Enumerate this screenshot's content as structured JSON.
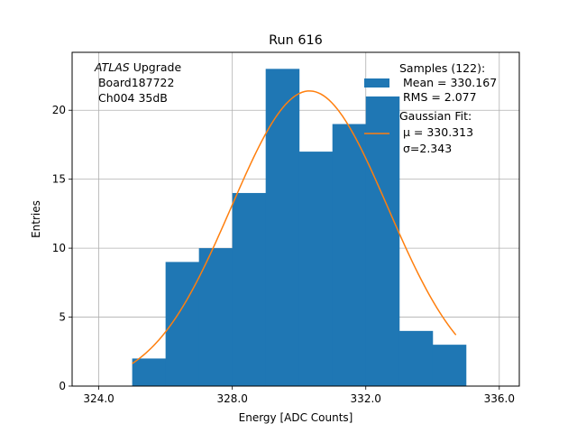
{
  "chart_data": {
    "type": "bar",
    "title": "Run 616",
    "xlabel": "Energy [ADC Counts]",
    "ylabel": "Entries",
    "xlim": [
      323.2,
      336.6
    ],
    "ylim": [
      0,
      24.2
    ],
    "xticks": [
      324,
      328,
      332,
      336
    ],
    "xtick_labels": [
      "324.0",
      "328.0",
      "332.0",
      "336.0"
    ],
    "yticks": [
      0,
      5,
      10,
      15,
      20
    ],
    "ytick_labels": [
      "0",
      "5",
      "10",
      "15",
      "20"
    ],
    "grid": true,
    "bins": [
      {
        "x0": 325.0,
        "x1": 326.0,
        "count": 2
      },
      {
        "x0": 326.0,
        "x1": 327.0,
        "count": 9
      },
      {
        "x0": 327.0,
        "x1": 328.0,
        "count": 10
      },
      {
        "x0": 328.0,
        "x1": 329.0,
        "count": 14
      },
      {
        "x0": 329.0,
        "x1": 330.0,
        "count": 23
      },
      {
        "x0": 330.0,
        "x1": 331.0,
        "count": 17
      },
      {
        "x0": 331.0,
        "x1": 332.0,
        "count": 19
      },
      {
        "x0": 332.0,
        "x1": 333.0,
        "count": 21
      },
      {
        "x0": 333.0,
        "x1": 334.0,
        "count": 4
      },
      {
        "x0": 334.0,
        "x1": 335.0,
        "count": 3
      }
    ],
    "fit": {
      "mu": 330.313,
      "sigma": 2.343,
      "amplitude": 21.4,
      "x_range": [
        325.0,
        334.7
      ]
    },
    "annotation": {
      "line1_italic": "ATLAS",
      "line1_rest": " Upgrade",
      "line2": " Board187722",
      "line3": " Ch004 35dB"
    },
    "legend": {
      "position": "top-right",
      "samples_title": "Samples (122):",
      "samples_mean": " Mean = 330.167",
      "samples_rms": " RMS = 2.077",
      "fit_title": "Gaussian Fit:",
      "fit_mu": " μ = 330.313",
      "fit_sigma": " σ=2.343"
    },
    "colors": {
      "histogram": "#1f77b4",
      "fit": "#ff7f0e",
      "grid": "#b0b0b0"
    }
  }
}
